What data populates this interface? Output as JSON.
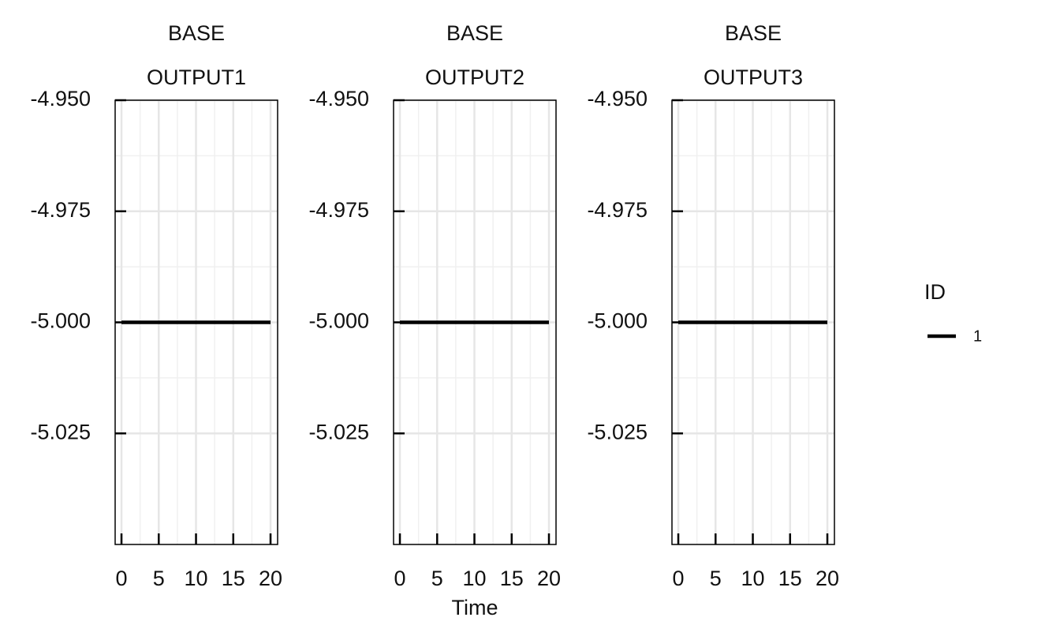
{
  "chart_data": {
    "type": "line",
    "x_label": "Time",
    "legend_title": "ID",
    "legend_position": "right",
    "grid": true,
    "series_name": "1",
    "color": "#000000",
    "x": [
      0,
      20
    ],
    "xlim": [
      -0.85,
      20.95
    ],
    "xticks": [
      0,
      5,
      10,
      15,
      20
    ],
    "ylim": [
      -5.05,
      -4.95
    ],
    "yticks": [
      {
        "value": -5.025,
        "label": "-5.025"
      },
      {
        "value": -5.0,
        "label": "-5.000"
      },
      {
        "value": -4.975,
        "label": "-4.975"
      },
      {
        "value": -4.95,
        "label": "-4.950"
      }
    ],
    "panels": [
      {
        "title": "BASE",
        "subtitle": "OUTPUT1",
        "values": [
          -5.0,
          -5.0
        ]
      },
      {
        "title": "BASE",
        "subtitle": "OUTPUT2",
        "values": [
          -5.0,
          -5.0
        ]
      },
      {
        "title": "BASE",
        "subtitle": "OUTPUT3",
        "values": [
          -5.0,
          -5.0
        ]
      }
    ]
  }
}
